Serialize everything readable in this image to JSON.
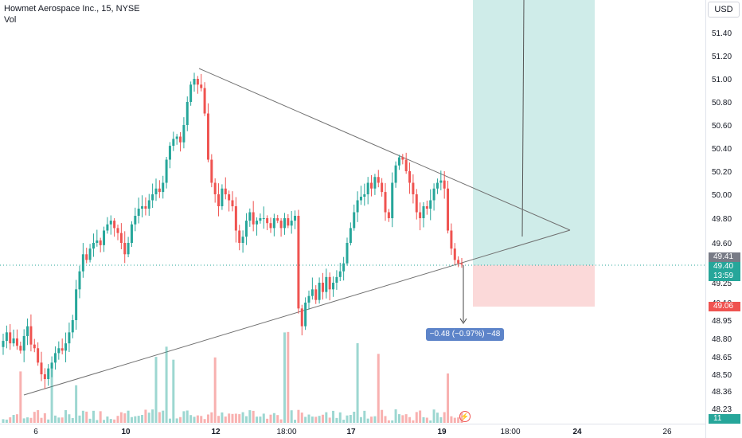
{
  "legend": {
    "symbol": "Howmet Aerospace Inc., 15, NYSE",
    "volume_label": "Vol"
  },
  "currency": "USD",
  "price_axis": {
    "ticks": [
      "51.40",
      "51.20",
      "51.00",
      "50.80",
      "50.60",
      "50.40",
      "50.20",
      "50.00",
      "49.80",
      "49.60",
      "49.25",
      "49.10",
      "48.95",
      "48.80",
      "48.65",
      "48.50",
      "48.36",
      "48.23"
    ]
  },
  "time_axis": {
    "ticks": [
      "6",
      "10",
      "12",
      "18:00",
      "17",
      "19",
      "18:00",
      "24",
      "26"
    ]
  },
  "tags": {
    "last_price": "49.41",
    "close_price": "49.40",
    "countdown": "13:59",
    "stop_price": "49.06",
    "volume": "11"
  },
  "ruler_label": "−0.48 (−0.97%) −48",
  "colors": {
    "up": "#26a69a",
    "down": "#ef5350",
    "profit_zone": "#cfece9",
    "loss_zone": "#fbd9d9",
    "ruler": "#5d84c9"
  },
  "flash_icon": "lightning-icon",
  "chart_data": {
    "type": "candlestick",
    "title": "Howmet Aerospace Inc., 15, NYSE",
    "xlabel": "",
    "ylabel": "USD",
    "ylim": [
      48.2,
      51.55
    ],
    "x_ticks": [
      "6",
      "10",
      "12",
      "18:00",
      "17",
      "19",
      "18:00",
      "24",
      "26"
    ],
    "y_ticks": [
      51.4,
      51.2,
      51.0,
      50.8,
      50.6,
      50.4,
      50.2,
      50.0,
      49.8,
      49.6,
      49.25,
      49.1,
      48.95,
      48.8,
      48.65,
      48.5,
      48.36,
      48.23
    ],
    "series": [
      {
        "name": "price_path",
        "close": [
          48.78,
          48.85,
          48.76,
          48.8,
          48.74,
          48.7,
          48.82,
          48.9,
          48.75,
          48.72,
          48.6,
          48.5,
          48.46,
          48.55,
          48.6,
          48.68,
          48.72,
          48.7,
          48.76,
          48.85,
          48.95,
          49.2,
          49.35,
          49.5,
          49.45,
          49.55,
          49.6,
          49.62,
          49.58,
          49.7,
          49.75,
          49.78,
          49.72,
          49.68,
          49.6,
          49.5,
          49.6,
          49.75,
          49.82,
          49.88,
          49.9,
          49.88,
          49.95,
          50.0,
          50.05,
          50.02,
          50.1,
          50.3,
          50.42,
          50.48,
          50.5,
          50.45,
          50.6,
          50.8,
          50.95,
          51.0,
          50.95,
          50.92,
          50.7,
          50.3,
          50.1,
          50.0,
          49.9,
          50.05,
          50.0,
          49.95,
          49.9,
          49.7,
          49.6,
          49.65,
          49.78,
          49.85,
          49.75,
          49.78,
          49.8,
          49.8,
          49.76,
          49.72,
          49.8,
          49.78,
          49.72,
          49.8,
          49.74,
          49.78,
          49.82,
          49.05,
          48.9,
          49.1,
          49.15,
          49.2,
          49.12,
          49.25,
          49.18,
          49.3,
          49.2,
          49.25,
          49.3,
          49.35,
          49.42,
          49.6,
          49.72,
          49.85,
          49.95,
          49.98,
          50.0,
          50.1,
          50.05,
          50.15,
          50.1,
          50.02,
          49.85,
          49.8,
          50.1,
          50.25,
          50.32,
          50.3,
          50.2,
          50.1,
          50.0,
          49.85,
          49.8,
          49.9,
          49.88,
          49.95,
          50.05,
          50.1,
          50.12,
          50.05,
          49.7,
          49.55,
          49.45,
          49.42,
          49.41
        ],
        "volume_scale": [
          0,
          1
        ]
      }
    ],
    "volume_last": 11,
    "last_price": 49.41,
    "close_marker": 49.4,
    "stop_level": 49.06,
    "ruler_change": -0.48,
    "ruler_change_percent": -0.97,
    "ruler_ticks": -48,
    "zones": {
      "profit_top": 51.55,
      "entry": 49.41,
      "loss_bottom": 49.06
    },
    "trendlines": [
      {
        "name": "upper",
        "from": [
          51.05,
          "start"
        ],
        "to": [
          49.68,
          "end"
        ]
      },
      {
        "name": "lower",
        "from": [
          48.45,
          "start"
        ],
        "to": [
          49.68,
          "end"
        ]
      }
    ],
    "grid": false,
    "legend_position": "top-left"
  }
}
